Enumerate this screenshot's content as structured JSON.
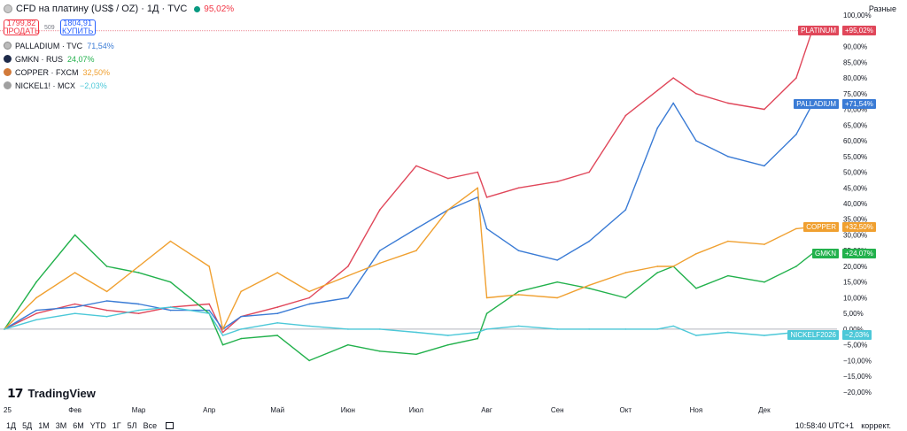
{
  "legend": {
    "title": "CFD на платину (US$ / OZ) · 1Д · TVC",
    "title_change": "95,02%",
    "sell_price": "1799,82",
    "sell_label": "ПРОДАТЬ",
    "spread": "509",
    "buy_price": "1804,91",
    "buy_label": "КУПИТЬ"
  },
  "series_legend": [
    {
      "name": "PALLADIUM · TVC",
      "change": "71,54%"
    },
    {
      "name": "GMKN · RUS",
      "change": "24,07%"
    },
    {
      "name": "COPPER · FXCM",
      "change": "32,50%"
    },
    {
      "name": "NICKEL1! · MCX",
      "change": "−2,03%"
    }
  ],
  "top_right_label": "Разные",
  "brand": "TradingView",
  "tags": [
    {
      "name": "PLATINUM",
      "value": "+95,02%"
    },
    {
      "name": "PALLADIUM",
      "value": "+71,54%"
    },
    {
      "name": "COPPER",
      "value": "+32,50%"
    },
    {
      "name": "GMKN",
      "value": "+24,07%"
    },
    {
      "name": "NICKELF2026",
      "value": "−2,03%"
    }
  ],
  "ranges": [
    "1Д",
    "5Д",
    "1М",
    "3М",
    "6М",
    "YTD",
    "1Г",
    "5Л",
    "Все"
  ],
  "clock": "10:58:40 UTC+1",
  "adjust_label": "коррект.",
  "colors": {
    "platinum": "#e0475a",
    "palladium": "#3a7bd5",
    "gmkn": "#22b14c",
    "copper": "#f0a030",
    "nickel": "#4cc8d8"
  },
  "chart_data": {
    "type": "line",
    "x_tick_labels": [
      "25",
      "Фев",
      "Мар",
      "Апр",
      "Май",
      "Июн",
      "Июл",
      "Авг",
      "Сен",
      "Окт",
      "Ноя",
      "Дек"
    ],
    "y_tick_labels": [
      "100,00%",
      "95,00%",
      "90,00%",
      "85,00%",
      "80,00%",
      "75,00%",
      "70,00%",
      "65,00%",
      "60,00%",
      "55,00%",
      "50,00%",
      "45,00%",
      "40,00%",
      "35,00%",
      "30,00%",
      "25,00%",
      "20,00%",
      "15,00%",
      "10,00%",
      "5,00%",
      "0,00%",
      "−5,00%",
      "−10,00%",
      "−15,00%",
      "−20,00%"
    ],
    "ylim": [
      -22,
      102
    ],
    "x": [
      "2025-01-01",
      "2025-01-15",
      "2025-02-01",
      "2025-02-15",
      "2025-03-01",
      "2025-03-15",
      "2025-04-01",
      "2025-04-07",
      "2025-04-15",
      "2025-05-01",
      "2025-05-15",
      "2025-06-01",
      "2025-06-15",
      "2025-07-01",
      "2025-07-15",
      "2025-07-28",
      "2025-08-01",
      "2025-08-15",
      "2025-09-01",
      "2025-09-15",
      "2025-10-01",
      "2025-10-15",
      "2025-10-22",
      "2025-11-01",
      "2025-11-15",
      "2025-12-01",
      "2025-12-15",
      "2025-12-22"
    ],
    "series": [
      {
        "name": "PLATINUM",
        "color": "#e0475a",
        "values": [
          0,
          5,
          8,
          6,
          5,
          7,
          8,
          -1,
          4,
          7,
          10,
          20,
          38,
          52,
          48,
          50,
          42,
          45,
          47,
          50,
          68,
          76,
          80,
          75,
          72,
          70,
          80,
          95
        ]
      },
      {
        "name": "PALLADIUM",
        "color": "#3a7bd5",
        "values": [
          0,
          6,
          7,
          9,
          8,
          6,
          6,
          0,
          4,
          5,
          8,
          10,
          25,
          32,
          38,
          42,
          32,
          25,
          22,
          28,
          38,
          64,
          72,
          60,
          55,
          52,
          62,
          71.5
        ]
      },
      {
        "name": "GMKN",
        "color": "#22b14c",
        "values": [
          0,
          15,
          30,
          20,
          18,
          15,
          5,
          -5,
          -3,
          -2,
          -10,
          -5,
          -7,
          -8,
          -5,
          -3,
          5,
          12,
          15,
          13,
          10,
          18,
          20,
          13,
          17,
          15,
          20,
          24
        ]
      },
      {
        "name": "COPPER",
        "color": "#f0a030",
        "values": [
          0,
          10,
          18,
          12,
          20,
          28,
          20,
          0,
          12,
          18,
          12,
          17,
          21,
          25,
          38,
          45,
          10,
          11,
          10,
          14,
          18,
          20,
          20,
          24,
          28,
          27,
          32,
          32.5
        ]
      },
      {
        "name": "NICKEL",
        "color": "#4cc8d8",
        "values": [
          0,
          3,
          5,
          4,
          6,
          7,
          5,
          -2,
          0,
          2,
          1,
          0,
          0,
          -1,
          -2,
          -1,
          0,
          1,
          0,
          0,
          0,
          0,
          1,
          -2,
          -1,
          -2,
          -1,
          -2
        ]
      }
    ]
  }
}
